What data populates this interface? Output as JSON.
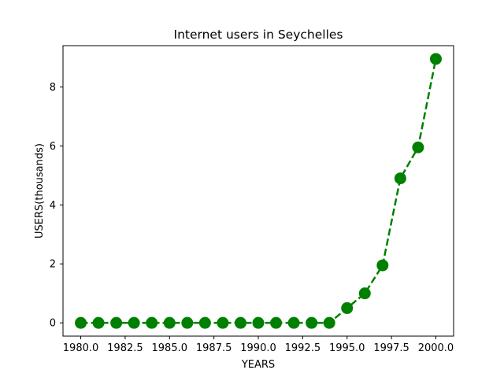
{
  "chart_data": {
    "type": "line",
    "title": "Internet users in Seychelles",
    "xlabel": "YEARS",
    "ylabel": "USERS(thousands)",
    "x": [
      1980,
      1981,
      1982,
      1983,
      1984,
      1985,
      1986,
      1987,
      1988,
      1989,
      1990,
      1991,
      1992,
      1993,
      1994,
      1995,
      1996,
      1997,
      1998,
      1999,
      2000
    ],
    "series": [
      {
        "values": [
          0,
          0,
          0,
          0,
          0,
          0,
          0,
          0,
          0,
          0,
          0,
          0,
          0,
          0,
          0,
          0.5,
          1.0,
          1.95,
          4.9,
          5.95,
          8.95
        ],
        "color": "#008000",
        "line_style": "dashed",
        "marker": "circle"
      }
    ],
    "x_ticks": [
      1980.0,
      1982.5,
      1985.0,
      1987.5,
      1990.0,
      1992.5,
      1995.0,
      1997.5,
      2000.0
    ],
    "x_tick_labels": [
      "1980.0",
      "1982.5",
      "1985.0",
      "1987.5",
      "1990.0",
      "1992.5",
      "1995.0",
      "1997.5",
      "2000.0"
    ],
    "y_ticks": [
      0,
      2,
      4,
      6,
      8
    ],
    "y_tick_labels": [
      "0",
      "2",
      "4",
      "6",
      "8"
    ],
    "xlim": [
      1979,
      2001
    ],
    "ylim": [
      -0.45,
      9.4
    ],
    "grid": false,
    "legend": false
  }
}
